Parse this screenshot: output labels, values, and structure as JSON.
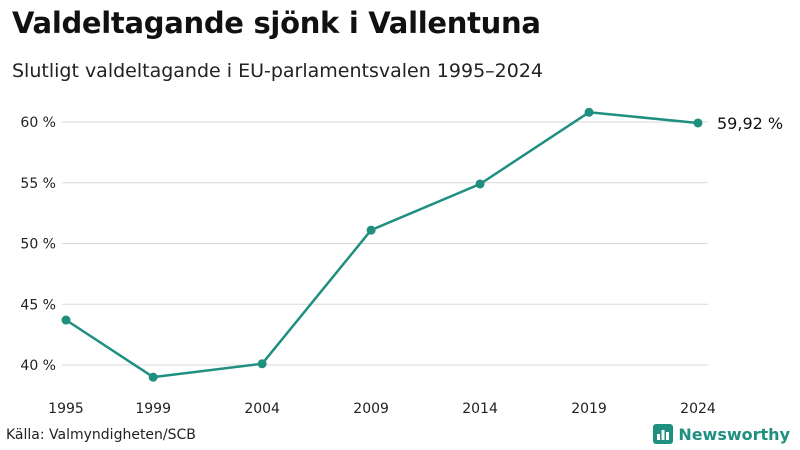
{
  "header": {
    "title": "Valdeltagande sjönk i Vallentuna",
    "subtitle": "Slutligt valdeltagande i EU-parlamentsvalen 1995–2024"
  },
  "chart_data": {
    "type": "line",
    "title": "Valdeltagande sjönk i Vallentuna",
    "subtitle": "Slutligt valdeltagande i EU-parlamentsvalen 1995–2024",
    "categories": [
      "1995",
      "1999",
      "2004",
      "2009",
      "2014",
      "2019",
      "2024"
    ],
    "x": [
      1995,
      1999,
      2004,
      2009,
      2014,
      2019,
      2024
    ],
    "series": [
      {
        "name": "Valdeltagande",
        "values": [
          43.7,
          39.0,
          40.1,
          51.1,
          54.9,
          60.8,
          59.92
        ]
      }
    ],
    "ylim": [
      39,
      61
    ],
    "yticks": [
      40,
      45,
      50,
      55,
      60
    ],
    "ytick_labels": [
      "40 %",
      "45 %",
      "50 %",
      "55 %",
      "60 %"
    ],
    "end_label": "59,92 %",
    "xlabel": "",
    "ylabel": "",
    "grid": true,
    "line_color": "#1f8f80"
  },
  "footer": {
    "source": "Källa: Valmyndigheten/SCB",
    "brand": "Newsworthy"
  }
}
